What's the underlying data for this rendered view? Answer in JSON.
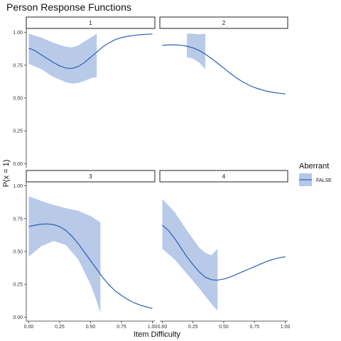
{
  "chart_data": {
    "type": "line",
    "title": "Person Response Functions",
    "xlabel": "Item Difficulty",
    "ylabel": "P(x = 1)",
    "xlim": [
      -0.02,
      1.02
    ],
    "ylim": [
      -0.03,
      1.03
    ],
    "x_ticks": [
      0,
      0.25,
      0.5,
      0.75,
      1
    ],
    "x_tick_labels": [
      "0.00",
      "0.25",
      "0.50",
      "0.75",
      "1.00"
    ],
    "y_ticks": [
      0,
      0.25,
      0.5,
      0.75,
      1
    ],
    "y_tick_labels": [
      "0.00",
      "0.25",
      "0.50",
      "0.75",
      "1.00"
    ],
    "grid": false,
    "legend": {
      "title": "Aberrant",
      "position": "right",
      "entries": [
        {
          "label": "FALSE"
        }
      ]
    },
    "colors": {
      "line": "#2b5fb4",
      "ribbon": "#b4c7e7",
      "strip_border": "#222222",
      "axis": "#333333"
    },
    "facets": [
      {
        "label": "1",
        "line": {
          "x": [
            0,
            0.05,
            0.1,
            0.15,
            0.2,
            0.25,
            0.3,
            0.35,
            0.4,
            0.45,
            0.5,
            0.55,
            0.6,
            0.65,
            0.7,
            0.75,
            0.8,
            0.85,
            0.9,
            0.95,
            1
          ],
          "y": [
            0.88,
            0.86,
            0.83,
            0.8,
            0.77,
            0.745,
            0.728,
            0.725,
            0.74,
            0.77,
            0.81,
            0.85,
            0.89,
            0.92,
            0.945,
            0.96,
            0.97,
            0.977,
            0.982,
            0.985,
            0.988
          ]
        },
        "ribbon": {
          "x": [
            0,
            0.1,
            0.2,
            0.3,
            0.35,
            0.4,
            0.45,
            0.5,
            0.55
          ],
          "ymin": [
            0.76,
            0.72,
            0.66,
            0.62,
            0.61,
            0.615,
            0.63,
            0.65,
            0.66
          ],
          "ymax": [
            0.99,
            0.96,
            0.92,
            0.89,
            0.885,
            0.9,
            0.93,
            0.96,
            0.99
          ]
        }
      },
      {
        "label": "2",
        "line": {
          "x": [
            0,
            0.05,
            0.1,
            0.15,
            0.2,
            0.25,
            0.3,
            0.35,
            0.4,
            0.45,
            0.5,
            0.55,
            0.6,
            0.65,
            0.7,
            0.75,
            0.8,
            0.85,
            0.9,
            0.95,
            1
          ],
          "y": [
            0.9,
            0.905,
            0.905,
            0.902,
            0.895,
            0.882,
            0.862,
            0.835,
            0.8,
            0.765,
            0.728,
            0.69,
            0.655,
            0.625,
            0.6,
            0.58,
            0.565,
            0.552,
            0.543,
            0.537,
            0.532
          ]
        },
        "ribbon": {
          "x": [
            0.2,
            0.25,
            0.3,
            0.35
          ],
          "ymin": [
            0.81,
            0.8,
            0.77,
            0.72
          ],
          "ymax": [
            0.99,
            0.99,
            0.985,
            0.99
          ]
        }
      },
      {
        "label": "3",
        "line": {
          "x": [
            0,
            0.05,
            0.1,
            0.15,
            0.2,
            0.25,
            0.3,
            0.35,
            0.4,
            0.45,
            0.5,
            0.55,
            0.6,
            0.65,
            0.7,
            0.75,
            0.8,
            0.85,
            0.9,
            0.95,
            1
          ],
          "y": [
            0.69,
            0.7,
            0.708,
            0.71,
            0.705,
            0.69,
            0.66,
            0.615,
            0.56,
            0.495,
            0.43,
            0.365,
            0.3,
            0.245,
            0.2,
            0.165,
            0.135,
            0.11,
            0.092,
            0.078,
            0.067
          ]
        },
        "ribbon": {
          "x": [
            0,
            0.1,
            0.2,
            0.3,
            0.4,
            0.5,
            0.55,
            0.58
          ],
          "ymin": [
            0.46,
            0.54,
            0.58,
            0.55,
            0.44,
            0.25,
            0.12,
            0.03
          ],
          "ymax": [
            0.92,
            0.885,
            0.855,
            0.83,
            0.81,
            0.77,
            0.74,
            0.72
          ]
        }
      },
      {
        "label": "4",
        "line": {
          "x": [
            0,
            0.05,
            0.1,
            0.15,
            0.2,
            0.25,
            0.3,
            0.35,
            0.4,
            0.45,
            0.5,
            0.55,
            0.6,
            0.65,
            0.7,
            0.75,
            0.8,
            0.85,
            0.9,
            0.95,
            1
          ],
          "y": [
            0.7,
            0.66,
            0.6,
            0.53,
            0.46,
            0.4,
            0.345,
            0.305,
            0.285,
            0.282,
            0.29,
            0.305,
            0.325,
            0.345,
            0.365,
            0.385,
            0.405,
            0.425,
            0.44,
            0.452,
            0.46
          ]
        },
        "ribbon": {
          "x": [
            0,
            0.1,
            0.2,
            0.3,
            0.35,
            0.4,
            0.45
          ],
          "ymin": [
            0.52,
            0.44,
            0.33,
            0.22,
            0.16,
            0.1,
            0.05
          ],
          "ymax": [
            0.9,
            0.8,
            0.66,
            0.53,
            0.49,
            0.47,
            0.52
          ]
        }
      }
    ]
  }
}
